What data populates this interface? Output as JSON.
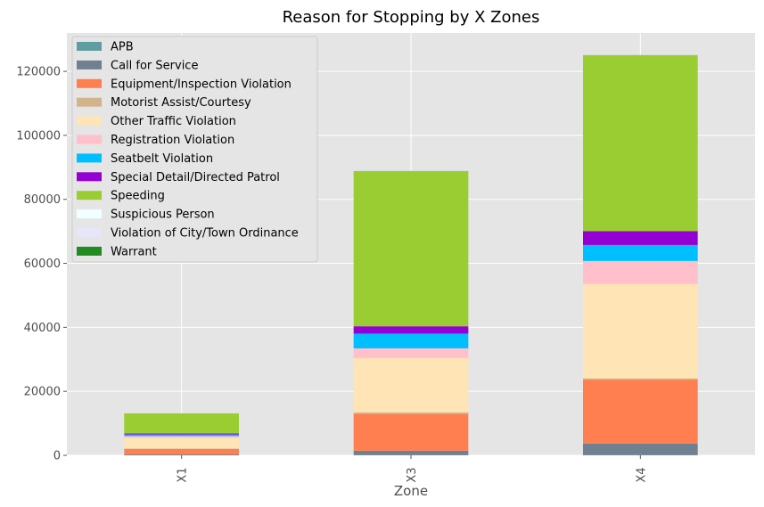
{
  "chart_data": {
    "type": "bar",
    "stacked": true,
    "title": "Reason for Stopping by X Zones",
    "xlabel": "Zone",
    "ylabel": "",
    "categories": [
      "X1",
      "X3",
      "X4"
    ],
    "ylim": [
      0,
      132000
    ],
    "yticks": [
      0,
      20000,
      40000,
      60000,
      80000,
      100000,
      120000
    ],
    "ytick_labels": [
      "0",
      "20000",
      "40000",
      "60000",
      "80000",
      "100000",
      "120000"
    ],
    "grid": true,
    "legend_position": "top-left",
    "series": [
      {
        "name": "APB",
        "color": "#5f9ea0",
        "values": [
          10,
          30,
          40
        ]
      },
      {
        "name": "Call for Service",
        "color": "#708090",
        "values": [
          300,
          1400,
          3600
        ]
      },
      {
        "name": "Equipment/Inspection Violation",
        "color": "#ff7f50",
        "values": [
          1700,
          11500,
          20000
        ]
      },
      {
        "name": "Motorist Assist/Courtesy",
        "color": "#d2b48c",
        "values": [
          100,
          500,
          400
        ]
      },
      {
        "name": "Other Traffic Violation",
        "color": "#ffe4b5",
        "values": [
          3400,
          17000,
          29500
        ]
      },
      {
        "name": "Registration Violation",
        "color": "#ffc0cb",
        "values": [
          500,
          3000,
          7200
        ]
      },
      {
        "name": "Seatbelt Violation",
        "color": "#00bfff",
        "values": [
          500,
          4600,
          5000
        ]
      },
      {
        "name": "Special Detail/Directed Patrol",
        "color": "#9400d3",
        "values": [
          300,
          2300,
          4300
        ]
      },
      {
        "name": "Speeding",
        "color": "#9acd32",
        "values": [
          6300,
          48500,
          55000
        ]
      },
      {
        "name": "Suspicious Person",
        "color": "#f0ffff",
        "values": [
          20,
          50,
          50
        ]
      },
      {
        "name": "Violation of City/Town Ordinance",
        "color": "#e6e6fa",
        "values": [
          20,
          50,
          50
        ]
      },
      {
        "name": "Warrant",
        "color": "#228b22",
        "values": [
          10,
          20,
          30
        ]
      }
    ]
  }
}
